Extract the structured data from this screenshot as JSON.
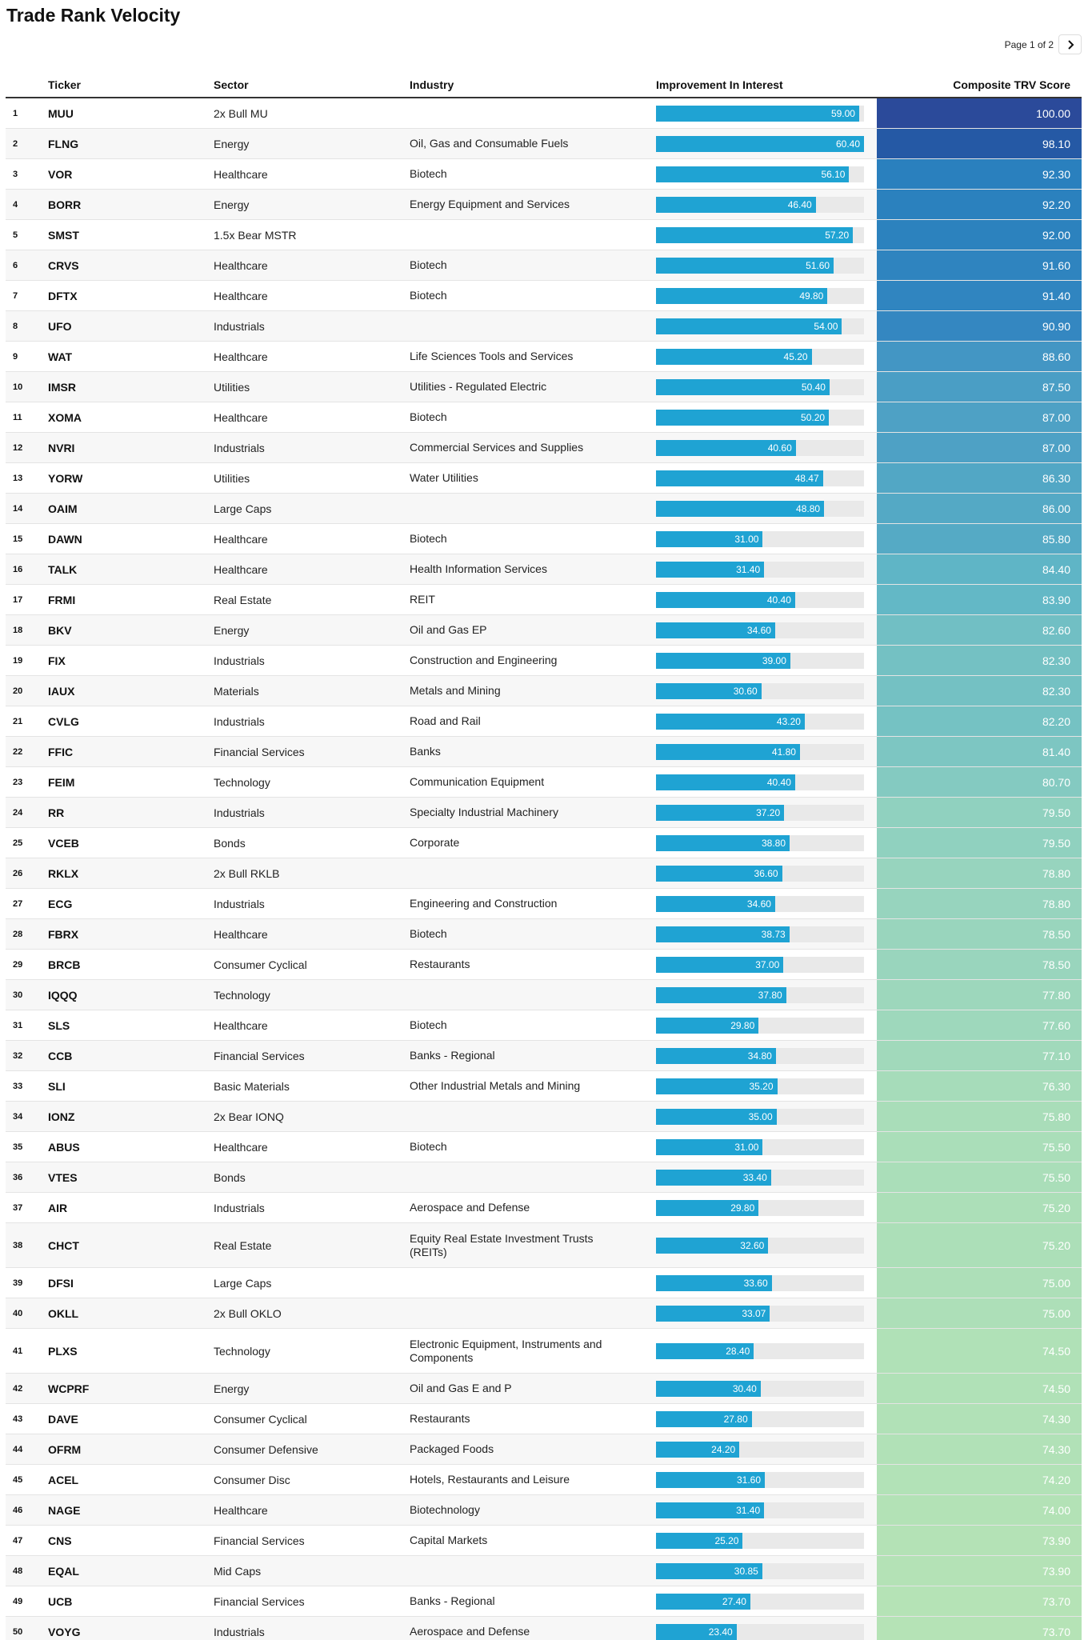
{
  "title": "Trade Rank Velocity",
  "pager": {
    "text": "Page 1 of 2",
    "next_icon": "chevron-right-icon"
  },
  "columns": {
    "ticker": "Ticker",
    "sector": "Sector",
    "industry": "Industry",
    "improvement": "Improvement In Interest",
    "score": "Composite TRV Score"
  },
  "improvement_max": 60.4,
  "score_color_scale": [
    "#2b4a9a",
    "#1a73b8",
    "#3d8fc4",
    "#60b6c6",
    "#96d4be",
    "#b5e3b6"
  ],
  "rows": [
    {
      "rank": "1",
      "ticker": "MUU",
      "sector": "2x Bull MU",
      "industry": "",
      "improvement": "59.00",
      "score": "100.00"
    },
    {
      "rank": "2",
      "ticker": "FLNG",
      "sector": "Energy",
      "industry": "Oil, Gas and Consumable Fuels",
      "improvement": "60.40",
      "score": "98.10"
    },
    {
      "rank": "3",
      "ticker": "VOR",
      "sector": "Healthcare",
      "industry": "Biotech",
      "improvement": "56.10",
      "score": "92.30"
    },
    {
      "rank": "4",
      "ticker": "BORR",
      "sector": "Energy",
      "industry": "Energy Equipment and Services",
      "improvement": "46.40",
      "score": "92.20"
    },
    {
      "rank": "5",
      "ticker": "SMST",
      "sector": "1.5x Bear MSTR",
      "industry": "",
      "improvement": "57.20",
      "score": "92.00"
    },
    {
      "rank": "6",
      "ticker": "CRVS",
      "sector": "Healthcare",
      "industry": "Biotech",
      "improvement": "51.60",
      "score": "91.60"
    },
    {
      "rank": "7",
      "ticker": "DFTX",
      "sector": "Healthcare",
      "industry": "Biotech",
      "improvement": "49.80",
      "score": "91.40"
    },
    {
      "rank": "8",
      "ticker": "UFO",
      "sector": "Industrials",
      "industry": "",
      "improvement": "54.00",
      "score": "90.90"
    },
    {
      "rank": "9",
      "ticker": "WAT",
      "sector": "Healthcare",
      "industry": "Life Sciences Tools and Services",
      "improvement": "45.20",
      "score": "88.60"
    },
    {
      "rank": "10",
      "ticker": "IMSR",
      "sector": "Utilities",
      "industry": "Utilities - Regulated Electric",
      "improvement": "50.40",
      "score": "87.50"
    },
    {
      "rank": "11",
      "ticker": "XOMA",
      "sector": "Healthcare",
      "industry": "Biotech",
      "improvement": "50.20",
      "score": "87.00"
    },
    {
      "rank": "12",
      "ticker": "NVRI",
      "sector": "Industrials",
      "industry": "Commercial Services and Supplies",
      "improvement": "40.60",
      "score": "87.00"
    },
    {
      "rank": "13",
      "ticker": "YORW",
      "sector": "Utilities",
      "industry": "Water Utilities",
      "improvement": "48.47",
      "score": "86.30"
    },
    {
      "rank": "14",
      "ticker": "OAIM",
      "sector": "Large Caps",
      "industry": "",
      "improvement": "48.80",
      "score": "86.00"
    },
    {
      "rank": "15",
      "ticker": "DAWN",
      "sector": "Healthcare",
      "industry": "Biotech",
      "improvement": "31.00",
      "score": "85.80"
    },
    {
      "rank": "16",
      "ticker": "TALK",
      "sector": "Healthcare",
      "industry": "Health Information Services",
      "improvement": "31.40",
      "score": "84.40"
    },
    {
      "rank": "17",
      "ticker": "FRMI",
      "sector": "Real Estate",
      "industry": "REIT",
      "improvement": "40.40",
      "score": "83.90"
    },
    {
      "rank": "18",
      "ticker": "BKV",
      "sector": "Energy",
      "industry": "Oil and Gas EP",
      "improvement": "34.60",
      "score": "82.60"
    },
    {
      "rank": "19",
      "ticker": "FIX",
      "sector": "Industrials",
      "industry": "Construction and Engineering",
      "improvement": "39.00",
      "score": "82.30"
    },
    {
      "rank": "20",
      "ticker": "IAUX",
      "sector": "Materials",
      "industry": "Metals and Mining",
      "improvement": "30.60",
      "score": "82.30"
    },
    {
      "rank": "21",
      "ticker": "CVLG",
      "sector": "Industrials",
      "industry": "Road and Rail",
      "improvement": "43.20",
      "score": "82.20"
    },
    {
      "rank": "22",
      "ticker": "FFIC",
      "sector": "Financial Services",
      "industry": "Banks",
      "improvement": "41.80",
      "score": "81.40"
    },
    {
      "rank": "23",
      "ticker": "FEIM",
      "sector": "Technology",
      "industry": "Communication Equipment",
      "improvement": "40.40",
      "score": "80.70"
    },
    {
      "rank": "24",
      "ticker": "RR",
      "sector": "Industrials",
      "industry": "Specialty Industrial Machinery",
      "improvement": "37.20",
      "score": "79.50"
    },
    {
      "rank": "25",
      "ticker": "VCEB",
      "sector": "Bonds",
      "industry": "Corporate",
      "improvement": "38.80",
      "score": "79.50"
    },
    {
      "rank": "26",
      "ticker": "RKLX",
      "sector": "2x Bull RKLB",
      "industry": "",
      "improvement": "36.60",
      "score": "78.80"
    },
    {
      "rank": "27",
      "ticker": "ECG",
      "sector": "Industrials",
      "industry": "Engineering and Construction",
      "improvement": "34.60",
      "score": "78.80"
    },
    {
      "rank": "28",
      "ticker": "FBRX",
      "sector": "Healthcare",
      "industry": "Biotech",
      "improvement": "38.73",
      "score": "78.50"
    },
    {
      "rank": "29",
      "ticker": "BRCB",
      "sector": "Consumer Cyclical",
      "industry": "Restaurants",
      "improvement": "37.00",
      "score": "78.50"
    },
    {
      "rank": "30",
      "ticker": "IQQQ",
      "sector": "Technology",
      "industry": "",
      "improvement": "37.80",
      "score": "77.80"
    },
    {
      "rank": "31",
      "ticker": "SLS",
      "sector": "Healthcare",
      "industry": "Biotech",
      "improvement": "29.80",
      "score": "77.60"
    },
    {
      "rank": "32",
      "ticker": "CCB",
      "sector": "Financial Services",
      "industry": "Banks - Regional",
      "improvement": "34.80",
      "score": "77.10"
    },
    {
      "rank": "33",
      "ticker": "SLI",
      "sector": "Basic Materials",
      "industry": "Other Industrial Metals and Mining",
      "improvement": "35.20",
      "score": "76.30"
    },
    {
      "rank": "34",
      "ticker": "IONZ",
      "sector": "2x Bear IONQ",
      "industry": "",
      "improvement": "35.00",
      "score": "75.80"
    },
    {
      "rank": "35",
      "ticker": "ABUS",
      "sector": "Healthcare",
      "industry": "Biotech",
      "improvement": "31.00",
      "score": "75.50"
    },
    {
      "rank": "36",
      "ticker": "VTES",
      "sector": "Bonds",
      "industry": "",
      "improvement": "33.40",
      "score": "75.50"
    },
    {
      "rank": "37",
      "ticker": "AIR",
      "sector": "Industrials",
      "industry": "Aerospace and Defense",
      "improvement": "29.80",
      "score": "75.20"
    },
    {
      "rank": "38",
      "ticker": "CHCT",
      "sector": "Real Estate",
      "industry": "Equity Real Estate Investment Trusts (REITs)",
      "improvement": "32.60",
      "score": "75.20"
    },
    {
      "rank": "39",
      "ticker": "DFSI",
      "sector": "Large Caps",
      "industry": "",
      "improvement": "33.60",
      "score": "75.00"
    },
    {
      "rank": "40",
      "ticker": "OKLL",
      "sector": "2x Bull OKLO",
      "industry": "",
      "improvement": "33.07",
      "score": "75.00"
    },
    {
      "rank": "41",
      "ticker": "PLXS",
      "sector": "Technology",
      "industry": "Electronic Equipment, Instruments and Components",
      "improvement": "28.40",
      "score": "74.50"
    },
    {
      "rank": "42",
      "ticker": "WCPRF",
      "sector": "Energy",
      "industry": "Oil and Gas E and P",
      "improvement": "30.40",
      "score": "74.50"
    },
    {
      "rank": "43",
      "ticker": "DAVE",
      "sector": "Consumer Cyclical",
      "industry": "Restaurants",
      "improvement": "27.80",
      "score": "74.30"
    },
    {
      "rank": "44",
      "ticker": "OFRM",
      "sector": "Consumer Defensive",
      "industry": "Packaged Foods",
      "improvement": "24.20",
      "score": "74.30"
    },
    {
      "rank": "45",
      "ticker": "ACEL",
      "sector": "Consumer Disc",
      "industry": "Hotels, Restaurants and Leisure",
      "improvement": "31.60",
      "score": "74.20"
    },
    {
      "rank": "46",
      "ticker": "NAGE",
      "sector": "Healthcare",
      "industry": "Biotechnology",
      "improvement": "31.40",
      "score": "74.00"
    },
    {
      "rank": "47",
      "ticker": "CNS",
      "sector": "Financial Services",
      "industry": "Capital Markets",
      "improvement": "25.20",
      "score": "73.90"
    },
    {
      "rank": "48",
      "ticker": "EQAL",
      "sector": "Mid Caps",
      "industry": "",
      "improvement": "30.85",
      "score": "73.90"
    },
    {
      "rank": "49",
      "ticker": "UCB",
      "sector": "Financial Services",
      "industry": "Banks - Regional",
      "improvement": "27.40",
      "score": "73.70"
    },
    {
      "rank": "50",
      "ticker": "VOYG",
      "sector": "Industrials",
      "industry": "Aerospace and Defense",
      "improvement": "23.40",
      "score": "73.70"
    }
  ]
}
